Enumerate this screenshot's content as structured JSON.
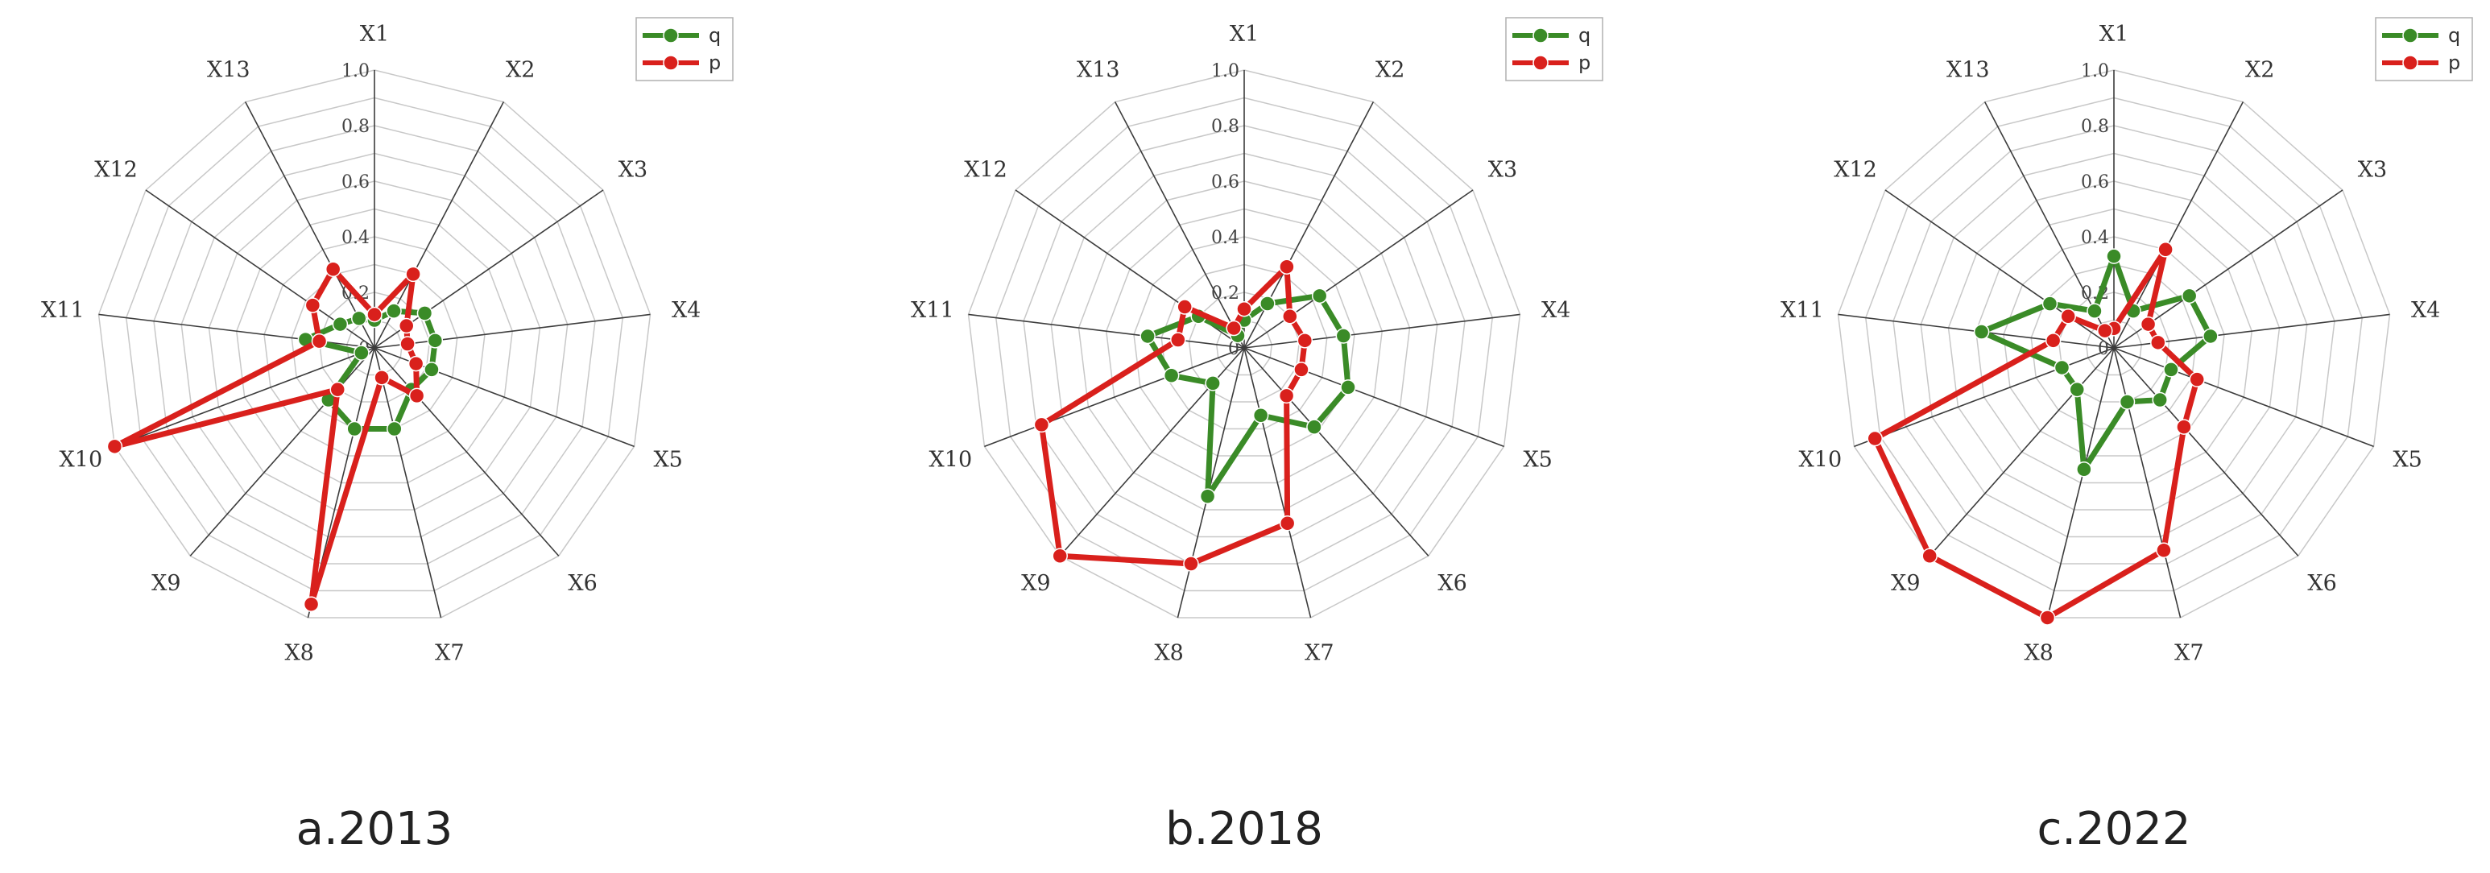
{
  "chart_data": [
    {
      "type": "radar",
      "caption": "a.2013",
      "axes": [
        "X1",
        "X2",
        "X3",
        "X4",
        "X5",
        "X6",
        "X7",
        "X8",
        "X9",
        "X10",
        "X11",
        "X12",
        "X13"
      ],
      "rlim": [
        0,
        1.0
      ],
      "rticks": [
        "0",
        "0.2",
        "0.4",
        "0.6",
        "0.8",
        "1.0"
      ],
      "legend_position": "top-right",
      "series": [
        {
          "name": "q",
          "color": "#3a8b27",
          "values": [
            0.1,
            0.15,
            0.22,
            0.22,
            0.22,
            0.2,
            0.3,
            0.3,
            0.25,
            0.05,
            0.25,
            0.15,
            0.12
          ]
        },
        {
          "name": "p",
          "color": "#d9201c",
          "values": [
            0.12,
            0.3,
            0.14,
            0.12,
            0.16,
            0.23,
            0.11,
            0.95,
            0.2,
            1.0,
            0.2,
            0.27,
            0.32
          ]
        }
      ]
    },
    {
      "type": "radar",
      "caption": "b.2018",
      "axes": [
        "X1",
        "X2",
        "X3",
        "X4",
        "X5",
        "X6",
        "X7",
        "X8",
        "X9",
        "X10",
        "X11",
        "X12",
        "X13"
      ],
      "rlim": [
        0,
        1.0
      ],
      "rticks": [
        "0",
        "0.2",
        "0.4",
        "0.6",
        "0.8",
        "1.0"
      ],
      "legend_position": "top-right",
      "series": [
        {
          "name": "q",
          "color": "#3a8b27",
          "values": [
            0.1,
            0.18,
            0.33,
            0.36,
            0.4,
            0.38,
            0.25,
            0.55,
            0.17,
            0.28,
            0.35,
            0.2,
            0.05
          ]
        },
        {
          "name": "p",
          "color": "#d9201c",
          "values": [
            0.14,
            0.33,
            0.2,
            0.22,
            0.22,
            0.23,
            0.65,
            0.8,
            1.0,
            0.78,
            0.24,
            0.26,
            0.08
          ]
        }
      ]
    },
    {
      "type": "radar",
      "caption": "c.2022",
      "axes": [
        "X1",
        "X2",
        "X3",
        "X4",
        "X5",
        "X6",
        "X7",
        "X8",
        "X9",
        "X10",
        "X11",
        "X12",
        "X13"
      ],
      "rlim": [
        0,
        1.0
      ],
      "rticks": [
        "0",
        "0.2",
        "0.4",
        "0.6",
        "0.8",
        "1.0"
      ],
      "legend_position": "top-right",
      "series": [
        {
          "name": "q",
          "color": "#3a8b27",
          "values": [
            0.33,
            0.15,
            0.33,
            0.35,
            0.22,
            0.25,
            0.2,
            0.45,
            0.2,
            0.2,
            0.48,
            0.28,
            0.15
          ]
        },
        {
          "name": "p",
          "color": "#d9201c",
          "values": [
            0.07,
            0.4,
            0.15,
            0.16,
            0.32,
            0.38,
            0.75,
            1.0,
            1.0,
            0.92,
            0.22,
            0.2,
            0.07
          ]
        }
      ]
    }
  ]
}
